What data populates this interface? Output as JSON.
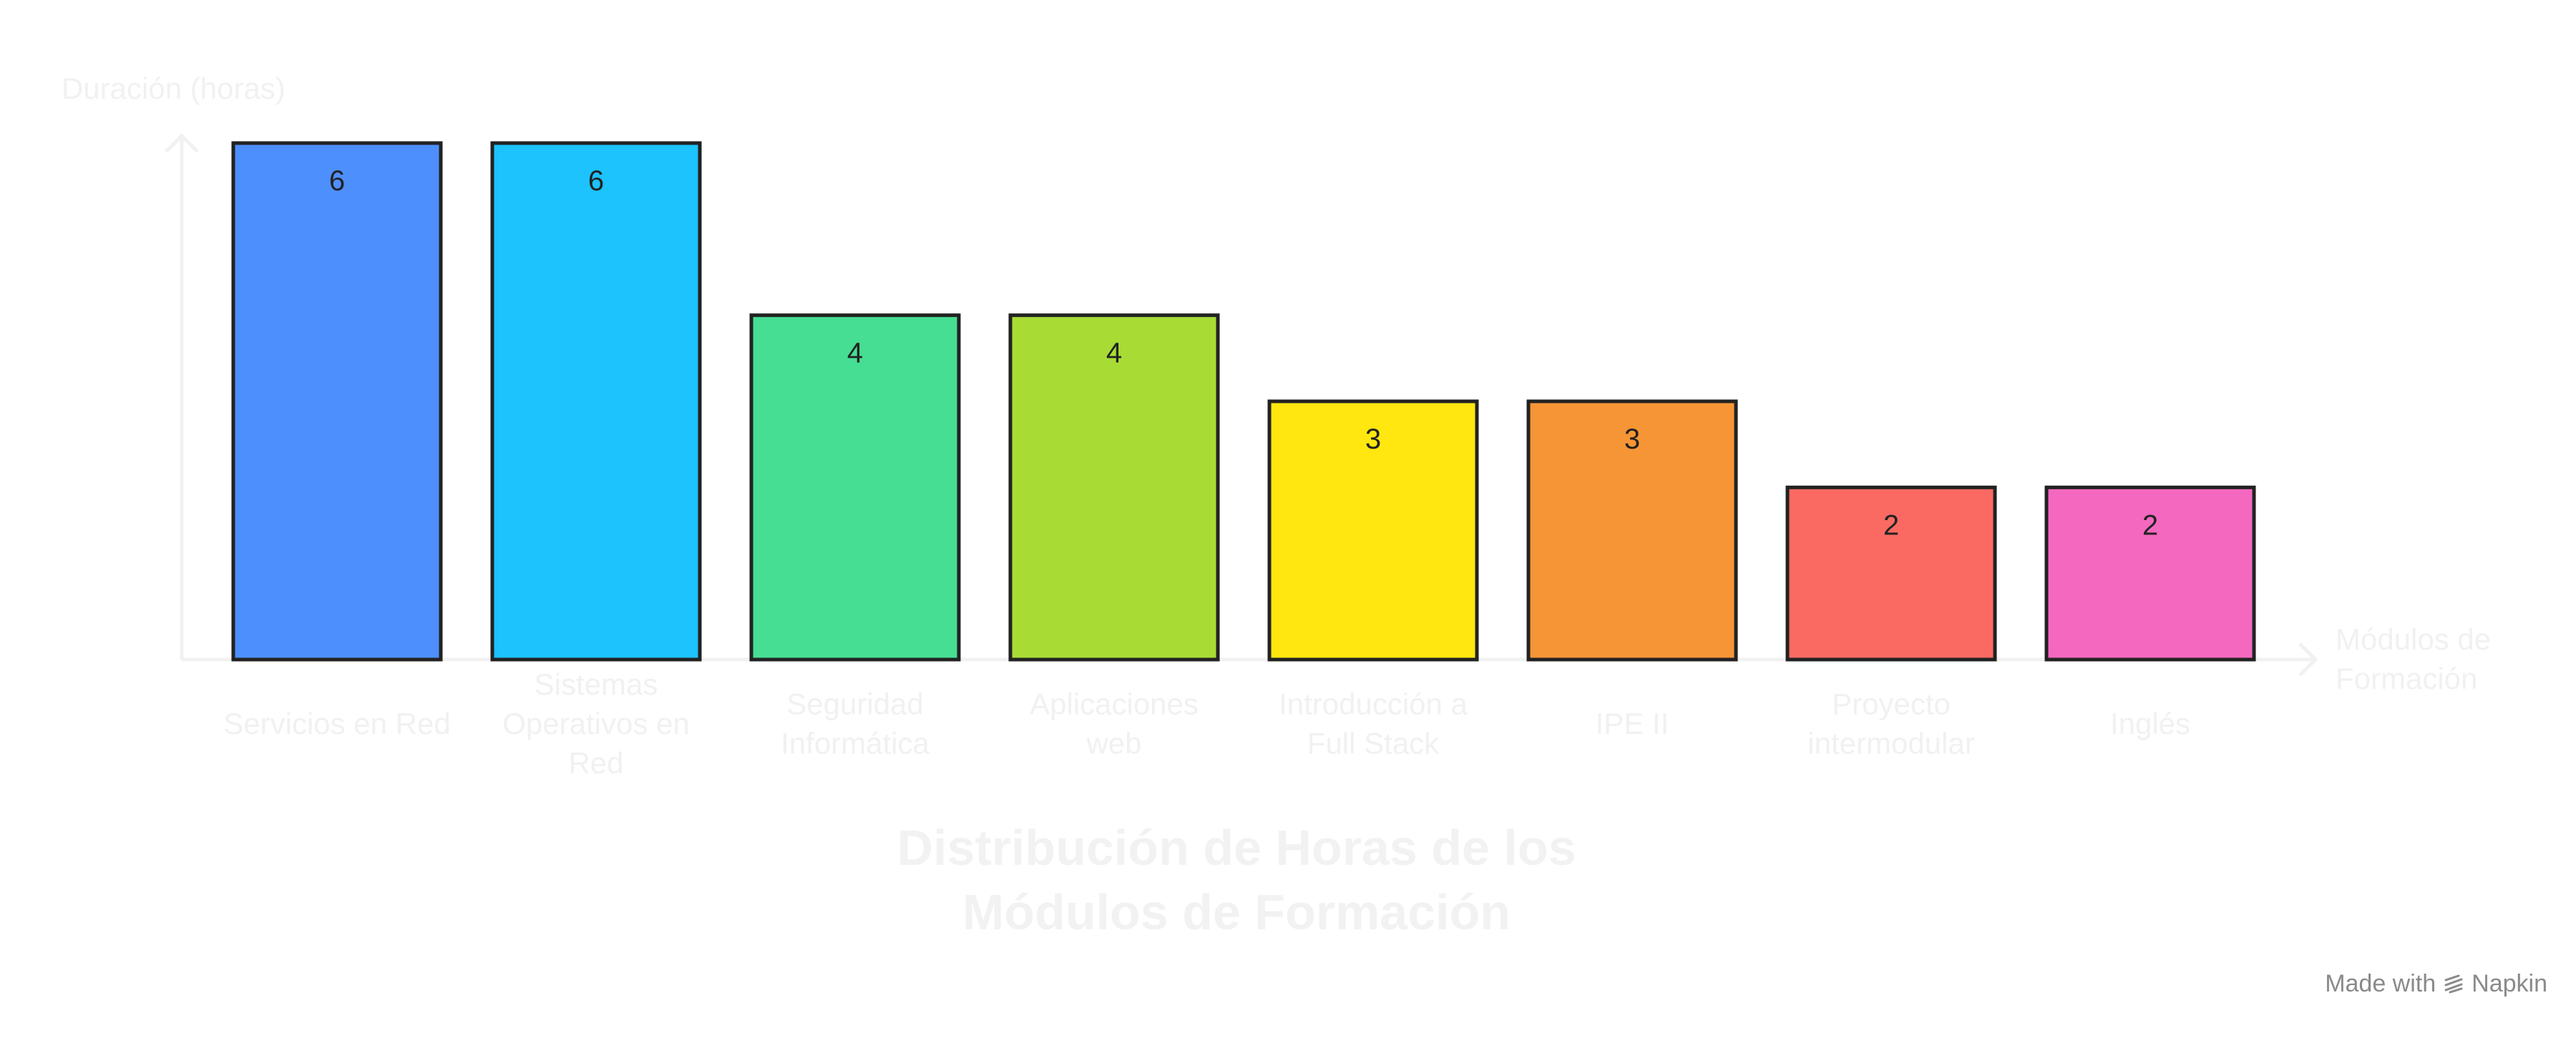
{
  "chart_data": {
    "type": "bar",
    "title": "Distribución de Horas de los Módulos de Formación",
    "title_lines": [
      "Distribución de Horas de los",
      "Módulos de Formación"
    ],
    "ylabel": "Duración (horas)",
    "xlabel": "Módulos de Formación",
    "xlabel_lines": [
      "Módulos de",
      "Formación"
    ],
    "ylim": [
      0,
      6
    ],
    "grid": false,
    "legend": "none",
    "categories": [
      "Servicios en Red",
      "Sistemas Operativos en Red",
      "Seguridad Informática",
      "Aplicaciones web",
      "Introducción a Full Stack",
      "IPE II",
      "Proyecto intermodular",
      "Inglés"
    ],
    "category_lines": [
      [
        "Servicios en Red"
      ],
      [
        "Sistemas",
        "Operativos en",
        "Red"
      ],
      [
        "Seguridad",
        "Informática"
      ],
      [
        "Aplicaciones",
        "web"
      ],
      [
        "Introducción a",
        "Full Stack"
      ],
      [
        "IPE II"
      ],
      [
        "Proyecto",
        "intermodular"
      ],
      [
        "Inglés"
      ]
    ],
    "values": [
      6,
      6,
      4,
      4,
      3,
      3,
      2,
      2
    ],
    "data_labels": [
      "6",
      "6",
      "4",
      "4",
      "3",
      "3",
      "2",
      "2"
    ],
    "colors": [
      "#4d8ffd",
      "#1cc3fd",
      "#46de93",
      "#a8dc35",
      "#ffe70f",
      "#f69535",
      "#fa6a63",
      "#f468bf"
    ]
  },
  "footer": {
    "made_with": "Made with",
    "brand": "Napkin",
    "brand_icon": "napkin-logo-icon"
  }
}
